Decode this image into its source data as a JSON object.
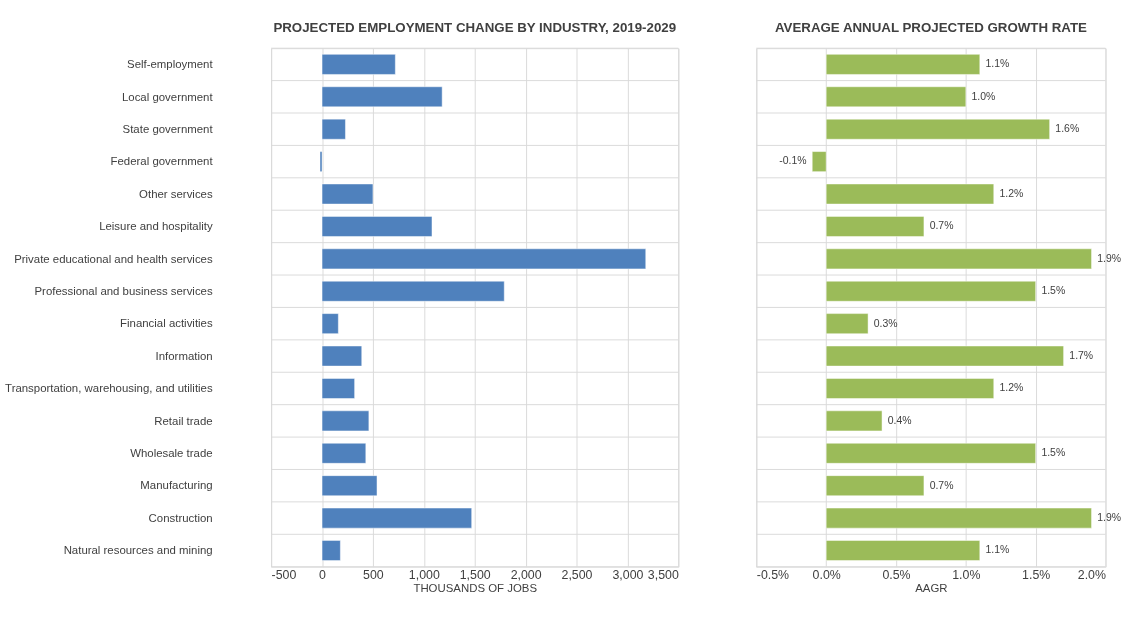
{
  "chart_data": [
    {
      "type": "bar",
      "orientation": "horizontal",
      "title": "PROJECTED EMPLOYMENT CHANGE BY INDUSTRY, 2019-2029",
      "xlabel": "THOUSANDS OF JOBS",
      "categories": [
        "Self-employment",
        "Local government",
        "State government",
        "Federal government",
        "Other services",
        "Leisure and hospitality",
        "Private educational and health services",
        "Professional and business services",
        "Financial activities",
        "Information",
        "Transportation, warehousing, and utilities",
        "Retail trade",
        "Wholesale trade",
        "Manufacturing",
        "Construction",
        "Natural resources and mining"
      ],
      "values": [
        720,
        1180,
        230,
        -20,
        500,
        1080,
        3180,
        1790,
        160,
        390,
        320,
        460,
        430,
        540,
        1470,
        180
      ],
      "color": "#4f81bd",
      "xlim": [
        -500,
        3500
      ],
      "xticks": [
        {
          "value": -500,
          "label": "-500"
        },
        0,
        500,
        {
          "value": 1000,
          "label": "1,000"
        },
        {
          "value": 1500,
          "label": "1,500"
        },
        {
          "value": 2000,
          "label": "2,000"
        },
        {
          "value": 2500,
          "label": "2,500"
        },
        {
          "value": 3000,
          "label": "3,000"
        },
        {
          "value": 3500,
          "label": "3,500"
        }
      ],
      "grid": true
    },
    {
      "type": "bar",
      "orientation": "horizontal",
      "title": "AVERAGE ANNUAL PROJECTED GROWTH RATE",
      "xlabel": "AAGR",
      "values": [
        1.1,
        1.0,
        1.6,
        -0.1,
        1.2,
        0.7,
        1.9,
        1.5,
        0.3,
        1.7,
        1.2,
        0.4,
        1.5,
        0.7,
        1.9,
        1.1
      ],
      "value_labels": [
        "1.1%",
        "1.0%",
        "1.6%",
        "-0.1%",
        "1.2%",
        "0.7%",
        "1.9%",
        "1.5%",
        "0.3%",
        "1.7%",
        "1.2%",
        "0.4%",
        "1.5%",
        "0.7%",
        "1.9%",
        "1.1%"
      ],
      "color": "#9bbb59",
      "xlim": [
        -0.5,
        2.0
      ],
      "xticks": [
        {
          "value": -0.5,
          "label": "-0.5%"
        },
        {
          "value": 0,
          "label": "0.0%"
        },
        {
          "value": 0.5,
          "label": "0.5%"
        },
        {
          "value": 1.0,
          "label": "1.0%"
        },
        {
          "value": 1.5,
          "label": "1.5%"
        },
        {
          "value": 2.0,
          "label": "2.0%"
        }
      ],
      "grid": true
    }
  ]
}
